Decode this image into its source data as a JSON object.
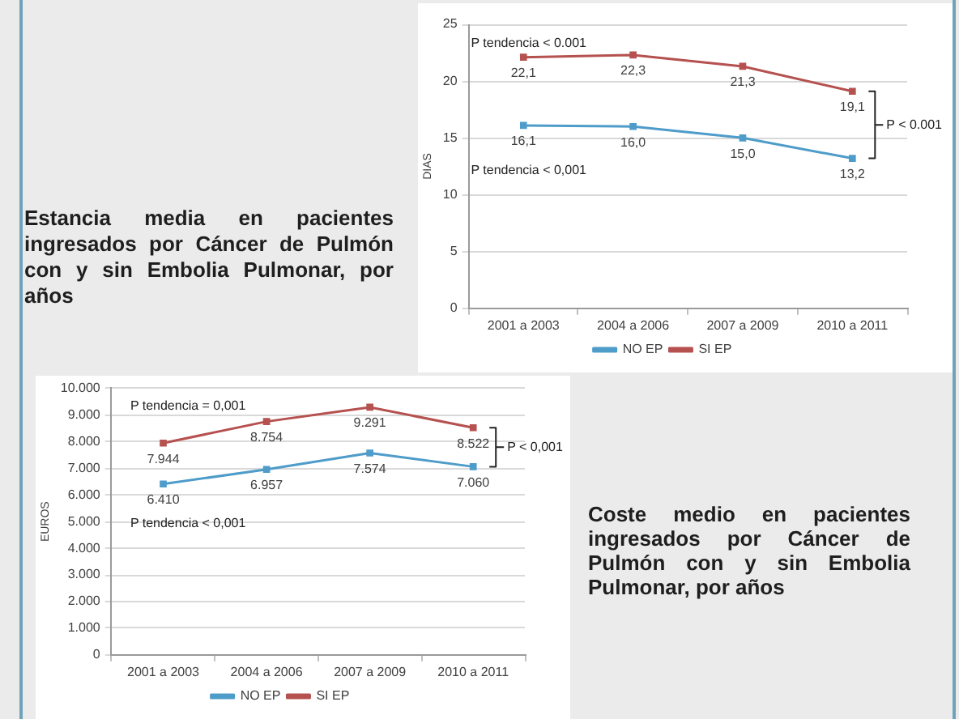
{
  "chart_data": [
    {
      "type": "other",
      "title": "Estancia media en pacientes ingresados por Cáncer de Pulmón con y sin Embolia Pulmonar, por años"
    },
    {
      "type": "line",
      "ylabel": "DIAS",
      "categories": [
        "2001 a 2003",
        "2004 a 2006",
        "2007 a 2009",
        "2010 a 2011"
      ],
      "series": [
        {
          "name": "NO EP",
          "color": "#4e9cc9",
          "values": [
            16.1,
            16.0,
            15.0,
            13.2
          ],
          "value_labels": [
            "16,1",
            "16,0",
            "15,0",
            "13,2"
          ]
        },
        {
          "name": "SI EP",
          "color": "#b5514f",
          "values": [
            22.1,
            22.3,
            21.3,
            19.1
          ],
          "value_labels": [
            "22,1",
            "22,3",
            "21,3",
            "19,1"
          ]
        }
      ],
      "ylim": [
        0,
        25
      ],
      "yticks": [
        0,
        5,
        10,
        15,
        20,
        25
      ],
      "grid": "y",
      "legend": "bottom",
      "marker": "square",
      "annotations": [
        "P tendencia < 0.001",
        "P tendencia < 0,001",
        "P < 0.001"
      ]
    },
    {
      "type": "line",
      "ylabel": "EUROS",
      "categories": [
        "2001 a 2003",
        "2004 a 2006",
        "2007 a 2009",
        "2010 a 2011"
      ],
      "series": [
        {
          "name": "NO EP",
          "color": "#4e9cc9",
          "values": [
            6410,
            6957,
            7574,
            7060
          ],
          "value_labels": [
            "6.410",
            "6.957",
            "7.574",
            "7.060"
          ]
        },
        {
          "name": "SI EP",
          "color": "#b5514f",
          "values": [
            7944,
            8754,
            9291,
            8522
          ],
          "value_labels": [
            "7.944",
            "8.754",
            "9.291",
            "8.522"
          ]
        }
      ],
      "ylim": [
        0,
        10000
      ],
      "yticks": [
        0,
        {
          "value": 1000,
          "label": "1.000"
        },
        {
          "value": 2000,
          "label": "2.000"
        },
        {
          "value": 3000,
          "label": "3.000"
        },
        {
          "value": 4000,
          "label": "4.000"
        },
        {
          "value": 5000,
          "label": "5.000"
        },
        {
          "value": 6000,
          "label": "6.000"
        },
        {
          "value": 7000,
          "label": "7.000"
        },
        {
          "value": 8000,
          "label": "8.000"
        },
        {
          "value": 9000,
          "label": "9.000"
        },
        {
          "value": 10000,
          "label": "10.000"
        }
      ],
      "grid": "y",
      "legend": "bottom",
      "marker": "square",
      "annotations": [
        "P tendencia = 0,001",
        "P tendencia < 0,001",
        "P < 0,001"
      ]
    },
    {
      "type": "other",
      "title": "Coste medio en pacientes ingresados por Cáncer de Pulmón con y sin Embolia Pulmonar, por años"
    }
  ]
}
